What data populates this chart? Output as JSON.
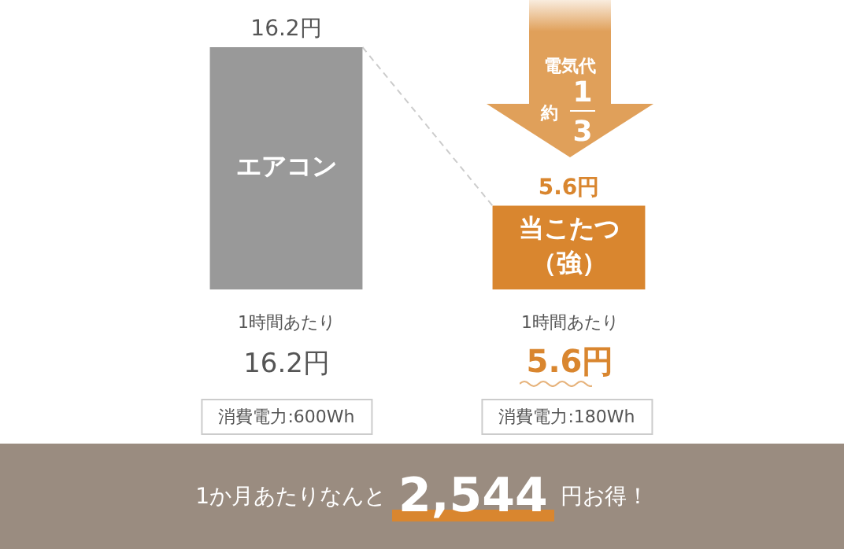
{
  "chart_data": {
    "type": "bar",
    "categories": [
      "エアコン",
      "当こたつ（強）"
    ],
    "values": [
      16.2,
      5.6
    ],
    "colors": [
      "#999999",
      "#d9862f"
    ],
    "value_labels": [
      "16.2円",
      "5.6円"
    ],
    "tick_labels": false,
    "grid": false,
    "legend": false,
    "annotations": [
      "電気代",
      "約",
      "1",
      "3",
      "1時間あたり",
      "1時間あたり",
      "16.2円",
      "5.6円",
      "消費電力:600Wh",
      "消費電力:180Wh",
      "1か月あたりなんと",
      "2,544",
      "円お得！"
    ]
  }
}
